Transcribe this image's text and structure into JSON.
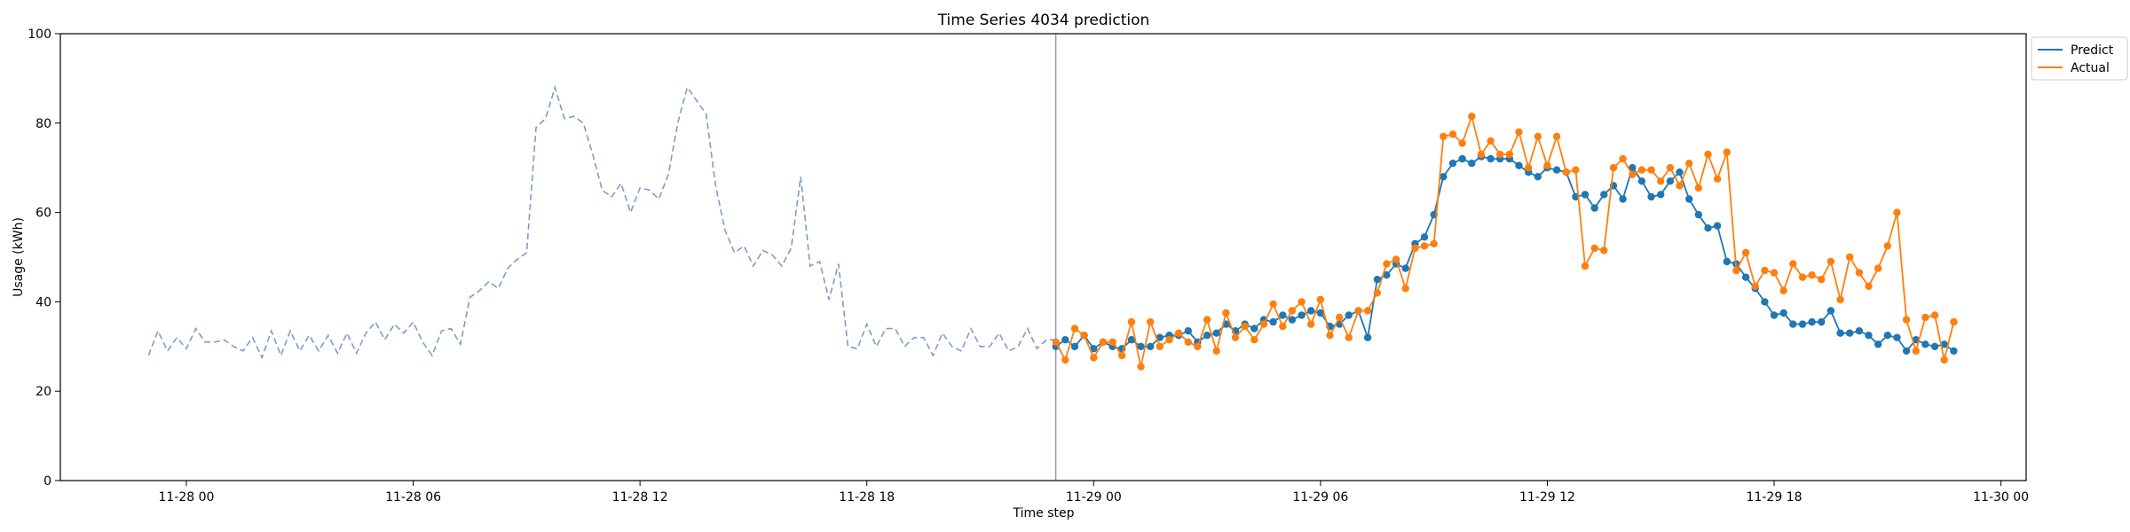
{
  "chart_data": {
    "type": "line",
    "title": "Time Series 4034 prediction",
    "xlabel": "Time step",
    "ylabel": "Usage (kWh)",
    "ylim": [
      0,
      100
    ],
    "xlim": [
      "2013-11-27 20:40",
      "2013-11-30 00:40"
    ],
    "yticks": [
      0,
      20,
      40,
      60,
      80,
      100
    ],
    "xticks": [
      {
        "value": "2013-11-28 00:00",
        "label": "11-28 00"
      },
      {
        "value": "2013-11-28 06:00",
        "label": "11-28 06"
      },
      {
        "value": "2013-11-28 12:00",
        "label": "11-28 12"
      },
      {
        "value": "2013-11-28 18:00",
        "label": "11-28 18"
      },
      {
        "value": "2013-11-29 00:00",
        "label": "11-29 00"
      },
      {
        "value": "2013-11-29 06:00",
        "label": "11-29 06"
      },
      {
        "value": "2013-11-29 12:00",
        "label": "11-29 12"
      },
      {
        "value": "2013-11-29 18:00",
        "label": "11-29 18"
      },
      {
        "value": "2013-11-30 00:00",
        "label": "11-30 00"
      }
    ],
    "legend": {
      "position": "top-right outside"
    },
    "vline": "2013-11-28 23:00",
    "x_start": "2013-11-27 23:00",
    "step_minutes": 15,
    "history": {
      "style": "dashed",
      "color": "#7f9cc7",
      "values": [
        28,
        33.5,
        29,
        32,
        29.5,
        34,
        31,
        31,
        31.5,
        30,
        29,
        32,
        27.5,
        33.5,
        28,
        33.5,
        29,
        32.5,
        29,
        32.5,
        28.5,
        33,
        28.5,
        33,
        35.5,
        31.5,
        35,
        33,
        35.5,
        31,
        28,
        33.5,
        34,
        30.5,
        41,
        42.5,
        44.5,
        43,
        47.5,
        49.5,
        51,
        79,
        81,
        88,
        81,
        81.5,
        80,
        73,
        65,
        63.5,
        66.5,
        60,
        65.5,
        65,
        63,
        68.5,
        80,
        88,
        85,
        82,
        66,
        56,
        51,
        52.5,
        48,
        51.5,
        50.5,
        48,
        52,
        68,
        48,
        49,
        40.5,
        48.5,
        30,
        29.5,
        35,
        30,
        34,
        34,
        30,
        32,
        32,
        28,
        33,
        30,
        29,
        34,
        30,
        30,
        33,
        29,
        30,
        34,
        29.5,
        31.5,
        31.5
      ]
    },
    "series": [
      {
        "name": "Predict",
        "color": "#1f77b4",
        "start": "2013-11-28 23:00",
        "values": [
          30,
          31.5,
          30,
          32.5,
          29.5,
          31,
          30,
          29.5,
          31.5,
          30,
          30,
          32,
          32.5,
          32.5,
          33.5,
          31,
          32.5,
          33,
          35,
          33.5,
          35,
          34,
          36,
          35.5,
          37,
          36,
          37,
          38,
          37.5,
          34.5,
          35,
          37,
          38,
          32,
          45,
          46,
          48.5,
          47.5,
          53,
          54.5,
          59.5,
          68,
          71,
          72,
          71,
          72.5,
          72,
          72,
          72,
          70.5,
          69,
          68,
          70,
          69.5,
          69,
          63.5,
          64,
          61,
          64,
          66,
          63,
          70,
          67,
          63.5,
          64,
          67,
          69,
          63,
          59.5,
          56.5,
          57,
          49,
          48.5,
          45.5,
          43,
          40,
          37,
          37.5,
          35,
          35,
          35.5,
          35.5,
          38,
          33,
          33,
          33.5,
          32.5,
          30.5,
          32.5,
          32,
          29,
          31.5,
          30.5,
          30,
          30.5,
          29
        ]
      },
      {
        "name": "Actual",
        "color": "#ff7f0e",
        "start": "2013-11-28 23:00",
        "values": [
          31,
          27,
          34,
          32.5,
          27.5,
          31,
          31,
          28,
          35.5,
          25.5,
          35.5,
          30,
          31.5,
          33,
          31,
          30,
          36,
          29,
          37.5,
          32,
          34.5,
          31.5,
          35,
          39.5,
          34.5,
          38,
          40,
          35,
          40.5,
          32.5,
          36.5,
          32,
          38,
          38,
          42,
          48.5,
          49.5,
          43,
          52,
          52.5,
          53,
          77,
          77.5,
          75.5,
          81.5,
          73,
          76,
          73,
          73,
          78,
          70,
          77,
          70.5,
          77,
          69,
          69.5,
          48,
          52,
          51.5,
          70,
          72,
          68.5,
          69.5,
          69.5,
          67,
          70,
          66,
          71,
          65.5,
          73,
          67.5,
          73.5,
          47,
          51,
          43.5,
          47,
          46.5,
          42.5,
          48.5,
          45.5,
          46,
          45,
          49,
          40.5,
          50,
          46.5,
          43.5,
          47.5,
          52.5,
          60,
          36,
          29,
          36.5,
          37,
          27,
          35.5
        ]
      }
    ]
  }
}
